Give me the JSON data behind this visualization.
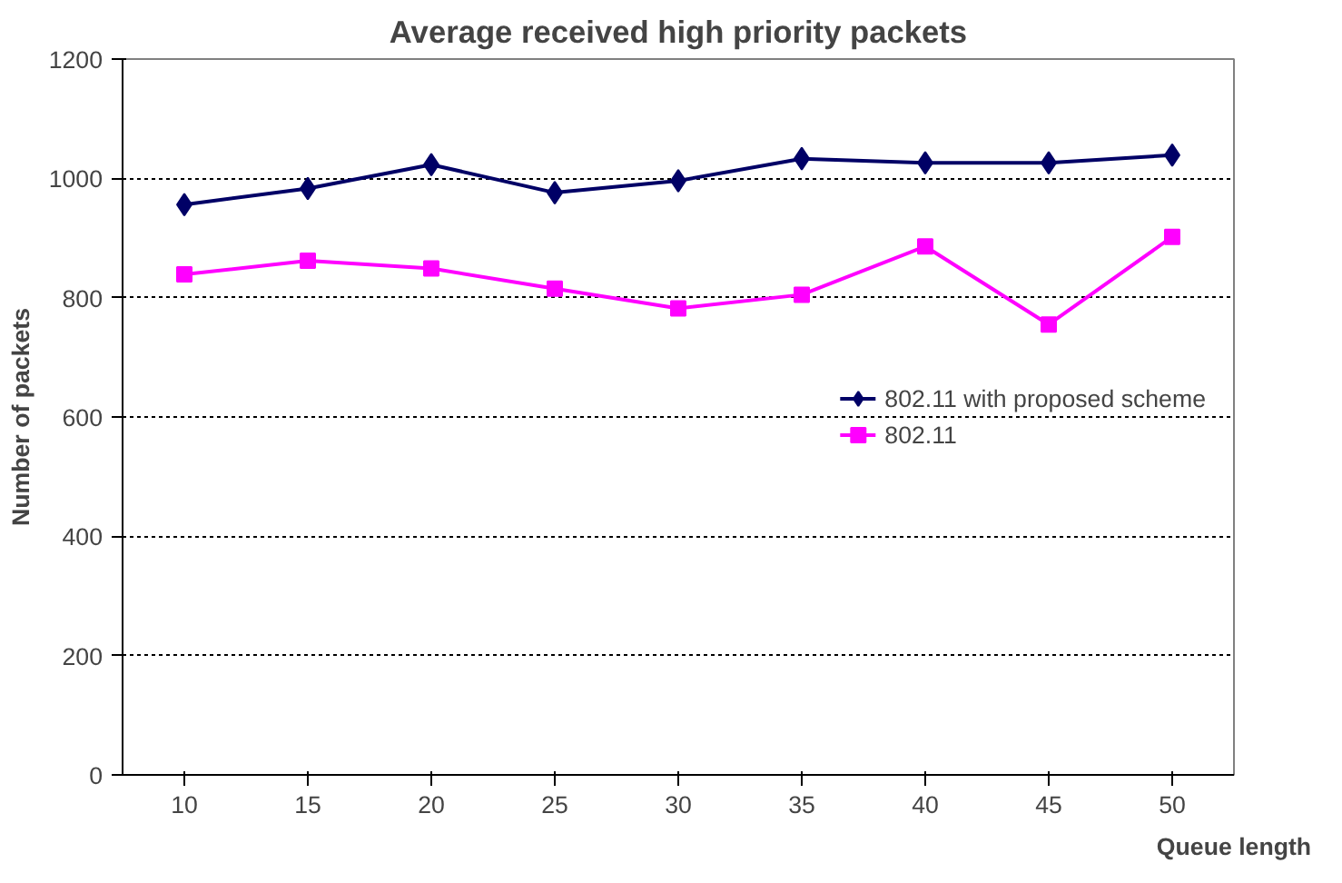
{
  "chart_data": {
    "type": "line",
    "title": "Average received high priority packets",
    "xlabel": "Queue length",
    "ylabel": "Number of packets",
    "categories": [
      "10",
      "15",
      "20",
      "25",
      "30",
      "35",
      "40",
      "45",
      "50"
    ],
    "series": [
      {
        "name": "802.11 with proposed scheme",
        "color": "#000066",
        "marker": "diamond",
        "values": [
          956,
          983,
          1023,
          976,
          996,
          1033,
          1026,
          1026,
          1039
        ]
      },
      {
        "name": "802.11",
        "color": "#ff00ff",
        "marker": "square",
        "values": [
          839,
          862,
          849,
          815,
          782,
          805,
          886,
          755,
          902
        ]
      }
    ],
    "ylim": [
      0,
      1200
    ],
    "yticks": [
      0,
      200,
      400,
      600,
      800,
      1000,
      1200
    ],
    "grid": "y",
    "legend": "right",
    "line_style": "solid"
  }
}
